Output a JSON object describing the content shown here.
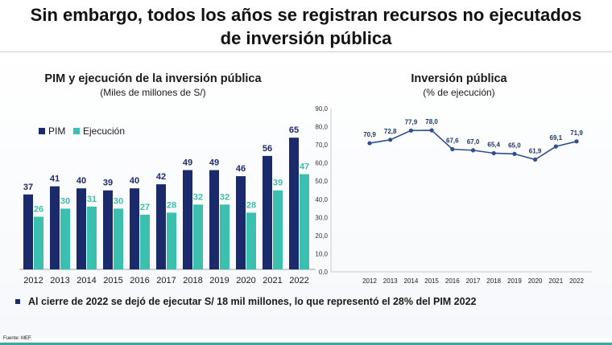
{
  "slide": {
    "title_line1": "Sin embargo, todos los años se registran recursos no ejecutados",
    "title_line2": "de inversión pública",
    "note": "Al cierre de 2022 se dejó de ejecutar S/ 18 mil millones, lo que representó el 28% del PIM 2022",
    "source": "Fuente: MEF."
  },
  "colors": {
    "pim": "#1b2a6b",
    "ejecucion": "#3bbfae",
    "line": "#2f4f8f",
    "label": "#1e3566"
  },
  "chart_data": [
    {
      "type": "bar",
      "title": "PIM y ejecución de la inversión pública",
      "subtitle": "(Miles de millones de S/)",
      "legend_position": "top-left",
      "categories": [
        "2012",
        "2013",
        "2014",
        "2015",
        "2016",
        "2017",
        "2018",
        "2019",
        "2020",
        "2021",
        "2022"
      ],
      "series": [
        {
          "name": "PIM",
          "values": [
            37,
            41,
            40,
            39,
            40,
            42,
            49,
            49,
            46,
            56,
            65
          ]
        },
        {
          "name": "Ejecución",
          "values": [
            26,
            30,
            31,
            30,
            27,
            28,
            32,
            32,
            28,
            39,
            47
          ]
        }
      ]
    },
    {
      "type": "line",
      "title": "Inversión pública",
      "subtitle": "(% de ejecución)",
      "categories": [
        "2012",
        "2013",
        "2014",
        "2015",
        "2016",
        "2017",
        "2018",
        "2019",
        "2020",
        "2021",
        "2022"
      ],
      "values": [
        70.9,
        72.8,
        77.9,
        78.0,
        67.6,
        67.0,
        65.4,
        65.0,
        61.9,
        69.1,
        71.9
      ],
      "value_labels": [
        "70,9",
        "72,8",
        "77,9",
        "78,0",
        "67,6",
        "67,0",
        "65,4",
        "65,0",
        "61,9",
        "69,1",
        "71,9"
      ],
      "ylim": [
        0,
        90
      ],
      "yticks": [
        "0,0",
        "10,0",
        "20,0",
        "30,0",
        "40,0",
        "50,0",
        "60,0",
        "70,0",
        "80,0",
        "90,0"
      ],
      "grid": false
    }
  ]
}
